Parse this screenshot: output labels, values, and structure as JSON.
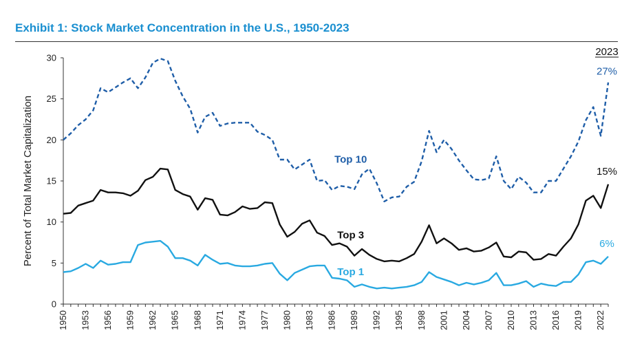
{
  "title": "Exhibit 1: Stock Market Concentration in the U.S., 1950-2023",
  "chart_data": {
    "type": "line",
    "title": "Exhibit 1: Stock Market Concentration in the U.S., 1950-2023",
    "ylabel": "Percent of Total Market Capitalization",
    "xlabel": "",
    "ylim": [
      0,
      30
    ],
    "yticks": [
      "0",
      "5",
      "10",
      "15",
      "20",
      "25",
      "30"
    ],
    "xlim": [
      1950,
      2023
    ],
    "xtick_labels": [
      "1950",
      "1953",
      "1956",
      "1959",
      "1962",
      "1965",
      "1968",
      "1971",
      "1974",
      "1977",
      "1980",
      "1983",
      "1986",
      "1989",
      "1992",
      "1995",
      "1998",
      "2001",
      "2004",
      "2007",
      "2010",
      "2013",
      "2016",
      "2019",
      "2022"
    ],
    "end_year_label": "2023",
    "grid": false,
    "legend": "inline labels",
    "x": [
      1950,
      1951,
      1952,
      1953,
      1954,
      1955,
      1956,
      1957,
      1958,
      1959,
      1960,
      1961,
      1962,
      1963,
      1964,
      1965,
      1966,
      1967,
      1968,
      1969,
      1970,
      1971,
      1972,
      1973,
      1974,
      1975,
      1976,
      1977,
      1978,
      1979,
      1980,
      1981,
      1982,
      1983,
      1984,
      1985,
      1986,
      1987,
      1988,
      1989,
      1990,
      1991,
      1992,
      1993,
      1994,
      1995,
      1996,
      1997,
      1998,
      1999,
      2000,
      2001,
      2002,
      2003,
      2004,
      2005,
      2006,
      2007,
      2008,
      2009,
      2010,
      2011,
      2012,
      2013,
      2014,
      2015,
      2016,
      2017,
      2018,
      2019,
      2020,
      2021,
      2022,
      2023
    ],
    "series": [
      {
        "name": "Top 10",
        "label": "Top 10",
        "end_label": "27%",
        "color": "#1f5ea8",
        "style": "dashed",
        "values": [
          20.0,
          20.8,
          21.8,
          22.5,
          23.6,
          26.3,
          25.8,
          26.4,
          27.0,
          27.5,
          26.3,
          27.6,
          29.4,
          29.9,
          29.6,
          27.2,
          25.3,
          23.8,
          20.9,
          22.8,
          23.3,
          21.7,
          22.0,
          22.1,
          22.1,
          22.1,
          21.0,
          20.6,
          20.0,
          17.6,
          17.6,
          16.4,
          17.0,
          17.6,
          15.0,
          15.1,
          13.9,
          14.4,
          14.3,
          14.0,
          15.8,
          16.5,
          14.7,
          12.5,
          13.0,
          13.1,
          14.3,
          14.9,
          17.4,
          21.1,
          18.5,
          20.0,
          18.9,
          17.5,
          16.3,
          15.2,
          15.1,
          15.3,
          18.0,
          15.0,
          14.0,
          15.5,
          14.8,
          13.6,
          13.6,
          15.0,
          15.0,
          16.5,
          18.0,
          19.8,
          22.4,
          24.0,
          20.5,
          27.0
        ]
      },
      {
        "name": "Top 3",
        "label": "Top 3",
        "end_label": "15%",
        "color": "#111111",
        "style": "solid",
        "values": [
          11.0,
          11.1,
          12.0,
          12.3,
          12.6,
          13.9,
          13.6,
          13.6,
          13.5,
          13.2,
          13.8,
          15.1,
          15.5,
          16.5,
          16.4,
          13.9,
          13.4,
          13.1,
          11.5,
          12.9,
          12.7,
          10.9,
          10.8,
          11.2,
          11.9,
          11.6,
          11.7,
          12.4,
          12.3,
          9.7,
          8.2,
          8.8,
          9.8,
          10.2,
          8.7,
          8.3,
          7.2,
          7.4,
          7.0,
          5.9,
          6.7,
          6.0,
          5.5,
          5.2,
          5.3,
          5.2,
          5.6,
          6.1,
          7.6,
          9.6,
          7.4,
          8.0,
          7.4,
          6.6,
          6.8,
          6.4,
          6.5,
          6.9,
          7.5,
          5.8,
          5.7,
          6.4,
          6.3,
          5.4,
          5.5,
          6.1,
          5.9,
          7.0,
          8.0,
          9.7,
          12.6,
          13.2,
          11.7,
          14.6
        ]
      },
      {
        "name": "Top 1",
        "label": "Top 1",
        "end_label": "6%",
        "color": "#29a9e1",
        "style": "solid",
        "values": [
          3.9,
          4.0,
          4.4,
          4.9,
          4.4,
          5.3,
          4.8,
          4.9,
          5.1,
          5.1,
          7.2,
          7.5,
          7.6,
          7.7,
          7.0,
          5.6,
          5.6,
          5.3,
          4.7,
          6.0,
          5.4,
          4.9,
          5.0,
          4.7,
          4.6,
          4.6,
          4.7,
          4.9,
          5.0,
          3.7,
          2.9,
          3.8,
          4.2,
          4.6,
          4.7,
          4.7,
          3.2,
          3.1,
          2.9,
          2.1,
          2.4,
          2.1,
          1.9,
          2.0,
          1.9,
          2.0,
          2.1,
          2.3,
          2.7,
          3.9,
          3.3,
          3.0,
          2.7,
          2.3,
          2.6,
          2.4,
          2.6,
          2.9,
          3.8,
          2.3,
          2.3,
          2.5,
          2.8,
          2.1,
          2.5,
          2.3,
          2.2,
          2.7,
          2.7,
          3.6,
          5.1,
          5.3,
          4.9,
          5.8
        ]
      }
    ]
  }
}
